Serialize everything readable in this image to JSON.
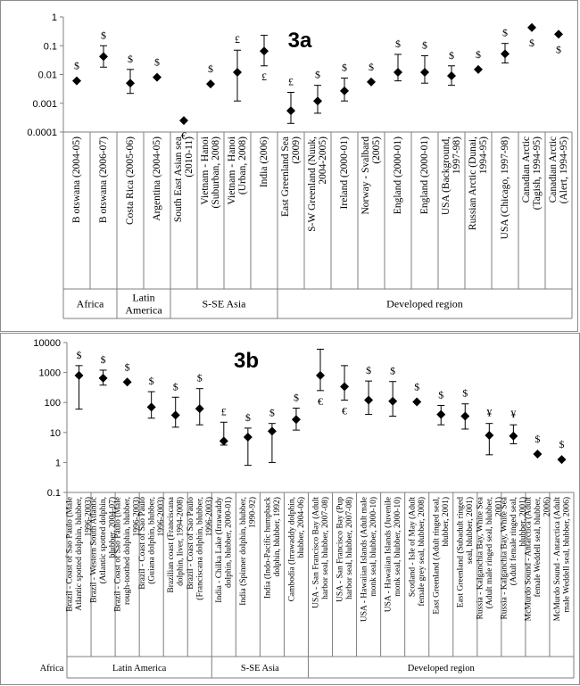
{
  "chart_data": [
    {
      "type": "scatter",
      "title": "3a",
      "y_scale": "log",
      "ylim": [
        0.0001,
        1
      ],
      "y_ticks": [
        "1",
        "0.1",
        "0.01",
        "0.001",
        "0.0001"
      ],
      "grid": false,
      "categories": [
        "B otswana (2004-05)",
        "B otswana (2006-07)",
        "Costa Rica (2005-06)",
        "Argentina (2004-05)",
        "South East Asian sea (2010-11)",
        "Vietnam - Hanoi (Suburban, 2008)",
        "Vietnam - Hanoi (Urban, 2008)",
        "India (2006)",
        "East Greenland Sea (2009)",
        "S-W Greenland (Nuuk, 2004-2005)",
        "Ireland (2000-01)",
        "Norway - Svalbard (2005)",
        "England (2000-01)",
        "England (2000-01)",
        "USA (Background, 1997-98)",
        "Russian Arctic (Dunai, 1994-95)",
        "USA (Chicago, 1997-98)",
        "Canadian Arctic (Tagish, 1994-95)",
        "Canadian Arctic (Alert, 1994-95)"
      ],
      "values": [
        0.006,
        0.042,
        0.005,
        0.008,
        0.00025,
        0.0047,
        0.012,
        0.065,
        0.00055,
        0.0012,
        0.0027,
        0.0055,
        0.012,
        0.012,
        0.009,
        0.015,
        0.052,
        0.43,
        0.25
      ],
      "err_low": [
        null,
        0.018,
        0.0022,
        null,
        null,
        null,
        0.0012,
        0.02,
        0.0002,
        0.00045,
        0.0012,
        null,
        0.006,
        0.005,
        0.0042,
        null,
        0.025,
        null,
        null
      ],
      "err_high": [
        null,
        0.1,
        0.015,
        null,
        null,
        null,
        0.07,
        0.23,
        0.0024,
        0.0042,
        0.0075,
        null,
        0.05,
        0.045,
        0.02,
        null,
        0.12,
        null,
        null
      ],
      "markers": [
        "$",
        "$",
        "$",
        "$",
        "€",
        "$",
        "£",
        "£",
        "£",
        "$",
        "$",
        "$",
        "$",
        "$",
        "$",
        "$",
        "$",
        "$",
        "$"
      ],
      "marker_pos": [
        "above",
        "above",
        "above",
        "above",
        "below",
        "above",
        "above",
        "below",
        "above",
        "above",
        "above",
        "above",
        "above",
        "above",
        "above",
        "above",
        "above",
        "below",
        "below"
      ],
      "groups": [
        {
          "label": "Africa",
          "from": 0,
          "to": 1
        },
        {
          "label": "Latin America",
          "from": 2,
          "to": 3
        },
        {
          "label": "S-SE Asia",
          "from": 4,
          "to": 7
        },
        {
          "label": "Developed region",
          "from": 8,
          "to": 18
        }
      ],
      "colors": {
        "marker": "#000000"
      }
    },
    {
      "type": "scatter",
      "title": "3b",
      "y_scale": "log",
      "ylim": [
        0.1,
        10000
      ],
      "y_ticks": [
        "10000",
        "1000",
        "100",
        "10",
        "1",
        "0.1"
      ],
      "grid": false,
      "categories": [
        "Brazil - Coast of Sao Paulo (Male Atlantic spotted dolphin, blubber, 1996-2003)",
        "Brazil - Western South Atlantic (Atlantic spotted dolphin, blubber, 2004-07)",
        "Brazil - Coast of Sao Paulo (Male rough-toothed dolphin, blubber, 1996-2003)",
        "Brazil - Coast of Sao Paulo (Guiana dolphin, blubber, 1996-2003)",
        "Brazilian coast (Franciscana dolphin, liver, 1994-2008)",
        "Brazil - Coast of Sao Paulo (Franciscana dolphin, blubber, 1996-2003)",
        "India - Chilka Lake (Irrawaddy dolphin, blubber, 2000-01)",
        "India (Spinner dolphin, blubber, 1990-92)",
        "India (Indo-Pacific humpback dolphin, blubber, 1992)",
        "Cambodia (Irrawaddy dolphin, blubber, 2004-06)",
        "USA - San Francisco Bay (Adult harbor seal, blubber, 2007-08)",
        "USA - San Francisco Bay (Pup harbor seal, blubber, 2007-08)",
        "USA - Hawaiian Islands (Adult male monk seal, blubber, 2000-10)",
        "USA - Hawaiian Islands (Juvenile monk seal, blubber, 2000-10)",
        "Scotland - Isle of May (Adult female grey seal, blubber, 2008)",
        "East Greenland (Adult ringed seal, blubber, 2001)",
        "East Greenland (Subadult ringed seal, blubber, 2001)",
        "Russia - Kalganchia Bay, White Sea (Adult male ringed seal, blubber, 2001)",
        "Russia - Kalganchia Bay, White Sea (Adult female ringed seal, blubber, 2001)",
        "McMurdo Sound - Antarctica (Adult female Weddell seal, blubber, 2006)",
        "McMurdo Sound - Antarctica (Adult male Weddell seal, blubber, 2006)"
      ],
      "values": [
        800,
        650,
        480,
        70,
        38,
        62,
        5.2,
        7,
        11,
        27,
        800,
        340,
        120,
        110,
        105,
        40,
        35,
        8,
        7.6,
        1.9,
        1.25
      ],
      "err_low": [
        60,
        380,
        null,
        30,
        15,
        18,
        3.8,
        0.8,
        1,
        12,
        250,
        120,
        40,
        35,
        null,
        18,
        13,
        1.8,
        4.2,
        null,
        null
      ],
      "err_high": [
        1700,
        1200,
        null,
        230,
        150,
        290,
        22,
        14,
        20,
        65,
        6000,
        1700,
        520,
        500,
        null,
        80,
        90,
        20,
        18,
        null,
        null
      ],
      "markers": [
        "$",
        "$",
        "$",
        "$",
        "$",
        "$",
        "£",
        "$",
        "$",
        "$",
        "€",
        "€",
        "$",
        "$",
        "$",
        "$",
        "$",
        "¥",
        "¥",
        "$",
        "$"
      ],
      "marker_pos": [
        "above",
        "above",
        "above",
        "above",
        "above",
        "above",
        "above",
        "above",
        "above",
        "above",
        "below",
        "below",
        "above",
        "above",
        "above",
        "above",
        "above",
        "above",
        "above",
        "above",
        "above"
      ],
      "groups": [
        {
          "label": "Africa",
          "from": -1,
          "to": -1
        },
        {
          "label": "Latin America",
          "from": 0,
          "to": 5
        },
        {
          "label": "S-SE Asia",
          "from": 6,
          "to": 9
        },
        {
          "label": "Developed region",
          "from": 10,
          "to": 20
        }
      ],
      "colors": {
        "marker": "#000000"
      }
    }
  ]
}
